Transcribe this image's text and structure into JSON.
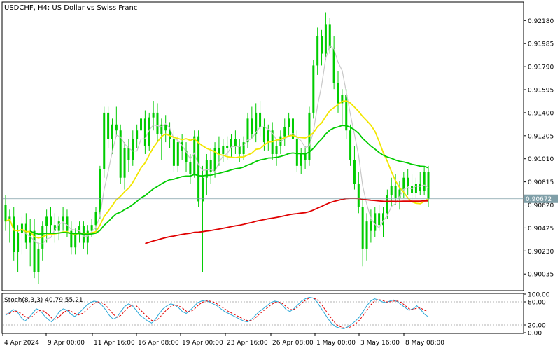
{
  "header": {
    "title": "USDCHF, H4:  US Dollar vs Swiss Franc"
  },
  "colors": {
    "background": "#ffffff",
    "candle": "#00cc00",
    "ma_yellow": "#f2e600",
    "ma_green": "#00cc00",
    "ma_red": "#e00000",
    "ma_gray": "#c8c8c8",
    "price_line": "#7f9fa8",
    "stoch_main": "#2aa8d8",
    "stoch_signal": "#e00000",
    "axis": "#000000"
  },
  "price_axis": {
    "ticks": [
      "0.92180",
      "0.91985",
      "0.91790",
      "0.91595",
      "0.91400",
      "0.91205",
      "0.91010",
      "0.90815",
      "0.90620",
      "0.90425",
      "0.90230",
      "0.90035"
    ],
    "current_price_label": "0.90672"
  },
  "stoch_panel": {
    "label": "Stoch(8,3,3) 40.79 55.21",
    "ticks": [
      "100.00",
      "80.00",
      "20.00",
      "0.00"
    ]
  },
  "time_axis": {
    "ticks": [
      "4 Apr 2024",
      "9 Apr 00:00",
      "11 Apr 16:00",
      "16 Apr 08:00",
      "19 Apr 00:00",
      "23 Apr 16:00",
      "26 Apr 08:00",
      "1 May 00:00",
      "3 May 16:00",
      "8 May 08:00"
    ]
  },
  "chart_data": [
    {
      "type": "candlestick",
      "title": "USDCHF, H4:  US Dollar vs Swiss Franc",
      "ylim": [
        0.899,
        0.9233
      ],
      "x_ticks": [
        "4 Apr 2024",
        "9 Apr 00:00",
        "11 Apr 16:00",
        "16 Apr 08:00",
        "19 Apr 00:00",
        "23 Apr 16:00",
        "26 Apr 08:00",
        "1 May 00:00",
        "3 May 16:00",
        "8 May 08:00"
      ],
      "current_price": 0.90672,
      "ohlc": [
        [
          0.9062,
          0.907,
          0.904,
          0.9048
        ],
        [
          0.9048,
          0.9058,
          0.903,
          0.9052
        ],
        [
          0.9052,
          0.906,
          0.9015,
          0.9022
        ],
        [
          0.9022,
          0.9045,
          0.9005,
          0.9038
        ],
        [
          0.9038,
          0.9052,
          0.902,
          0.9046
        ],
        [
          0.9046,
          0.9055,
          0.9025,
          0.903
        ],
        [
          0.903,
          0.905,
          0.901,
          0.904
        ],
        [
          0.904,
          0.905,
          0.9,
          0.9005
        ],
        [
          0.9005,
          0.903,
          0.8995,
          0.9025
        ],
        [
          0.9025,
          0.9048,
          0.9015,
          0.9044
        ],
        [
          0.9044,
          0.9058,
          0.903,
          0.9052
        ],
        [
          0.9052,
          0.906,
          0.9038,
          0.9045
        ],
        [
          0.9045,
          0.9055,
          0.903,
          0.904
        ],
        [
          0.904,
          0.9052,
          0.9032,
          0.9048
        ],
        [
          0.9048,
          0.906,
          0.904,
          0.9052
        ],
        [
          0.9052,
          0.9058,
          0.9035,
          0.904
        ],
        [
          0.904,
          0.9048,
          0.902,
          0.9026
        ],
        [
          0.9026,
          0.9042,
          0.902,
          0.9038
        ],
        [
          0.9038,
          0.9048,
          0.903,
          0.9044
        ],
        [
          0.9044,
          0.9048,
          0.9025,
          0.903
        ],
        [
          0.903,
          0.9045,
          0.902,
          0.904
        ],
        [
          0.904,
          0.905,
          0.9035,
          0.9045
        ],
        [
          0.9045,
          0.906,
          0.904,
          0.9056
        ],
        [
          0.9056,
          0.9095,
          0.905,
          0.9092
        ],
        [
          0.9092,
          0.9145,
          0.9085,
          0.914
        ],
        [
          0.914,
          0.9145,
          0.911,
          0.9118
        ],
        [
          0.9118,
          0.9135,
          0.9105,
          0.913
        ],
        [
          0.913,
          0.9145,
          0.912,
          0.9125
        ],
        [
          0.9125,
          0.913,
          0.908,
          0.9085
        ],
        [
          0.9085,
          0.9115,
          0.9075,
          0.911
        ],
        [
          0.911,
          0.9118,
          0.909,
          0.91
        ],
        [
          0.91,
          0.9125,
          0.9095,
          0.9118
        ],
        [
          0.9118,
          0.913,
          0.911,
          0.9125
        ],
        [
          0.9125,
          0.914,
          0.9118,
          0.9135
        ],
        [
          0.9135,
          0.9142,
          0.9105,
          0.9112
        ],
        [
          0.9112,
          0.914,
          0.9108,
          0.9136
        ],
        [
          0.9136,
          0.915,
          0.9125,
          0.914
        ],
        [
          0.914,
          0.9148,
          0.9115,
          0.9122
        ],
        [
          0.9122,
          0.9135,
          0.91,
          0.913
        ],
        [
          0.913,
          0.9138,
          0.9115,
          0.9125
        ],
        [
          0.9125,
          0.9132,
          0.911,
          0.9118
        ],
        [
          0.9118,
          0.9125,
          0.909,
          0.9095
        ],
        [
          0.9095,
          0.912,
          0.909,
          0.9115
        ],
        [
          0.9115,
          0.9122,
          0.91,
          0.9108
        ],
        [
          0.9108,
          0.9115,
          0.909,
          0.9098
        ],
        [
          0.9098,
          0.9105,
          0.908,
          0.9088
        ],
        [
          0.9088,
          0.9125,
          0.9085,
          0.912
        ],
        [
          0.912,
          0.9125,
          0.906,
          0.9065
        ],
        [
          0.9065,
          0.9095,
          0.9005,
          0.9085
        ],
        [
          0.9085,
          0.9105,
          0.907,
          0.91
        ],
        [
          0.91,
          0.911,
          0.908,
          0.909
        ],
        [
          0.909,
          0.9115,
          0.9085,
          0.911
        ],
        [
          0.911,
          0.912,
          0.9095,
          0.9105
        ],
        [
          0.9105,
          0.9118,
          0.9098,
          0.9112
        ],
        [
          0.9112,
          0.912,
          0.91,
          0.911
        ],
        [
          0.911,
          0.9122,
          0.9102,
          0.9118
        ],
        [
          0.9118,
          0.9125,
          0.9105,
          0.9112
        ],
        [
          0.9112,
          0.9118,
          0.9098,
          0.9105
        ],
        [
          0.9105,
          0.912,
          0.91,
          0.9115
        ],
        [
          0.9115,
          0.914,
          0.911,
          0.9135
        ],
        [
          0.9135,
          0.9145,
          0.9118,
          0.9122
        ],
        [
          0.9122,
          0.9148,
          0.9115,
          0.914
        ],
        [
          0.914,
          0.915,
          0.912,
          0.9128
        ],
        [
          0.9128,
          0.9135,
          0.9108,
          0.9115
        ],
        [
          0.9115,
          0.913,
          0.9108,
          0.9125
        ],
        [
          0.9125,
          0.9132,
          0.91,
          0.9105
        ],
        [
          0.9105,
          0.9118,
          0.9095,
          0.9112
        ],
        [
          0.9112,
          0.9125,
          0.9105,
          0.912
        ],
        [
          0.912,
          0.9135,
          0.9112,
          0.9128
        ],
        [
          0.9128,
          0.914,
          0.912,
          0.9135
        ],
        [
          0.9135,
          0.9142,
          0.911,
          0.9118
        ],
        [
          0.9118,
          0.9125,
          0.909,
          0.9095
        ],
        [
          0.9095,
          0.911,
          0.9088,
          0.9105
        ],
        [
          0.9105,
          0.9112,
          0.9092,
          0.91
        ],
        [
          0.91,
          0.9145,
          0.9095,
          0.914
        ],
        [
          0.914,
          0.9185,
          0.9135,
          0.918
        ],
        [
          0.918,
          0.9212,
          0.9172,
          0.9205
        ],
        [
          0.9205,
          0.921,
          0.918,
          0.919
        ],
        [
          0.919,
          0.9225,
          0.9185,
          0.9215
        ],
        [
          0.9215,
          0.922,
          0.919,
          0.9195
        ],
        [
          0.9195,
          0.9205,
          0.916,
          0.9165
        ],
        [
          0.9165,
          0.9175,
          0.914,
          0.9148
        ],
        [
          0.9148,
          0.916,
          0.913,
          0.9155
        ],
        [
          0.9155,
          0.916,
          0.9118,
          0.9125
        ],
        [
          0.9125,
          0.913,
          0.9095,
          0.91
        ],
        [
          0.91,
          0.9112,
          0.9075,
          0.908
        ],
        [
          0.908,
          0.909,
          0.9055,
          0.906
        ],
        [
          0.906,
          0.9068,
          0.901,
          0.9025
        ],
        [
          0.9025,
          0.9055,
          0.9015,
          0.9048
        ],
        [
          0.9048,
          0.9058,
          0.903,
          0.904
        ],
        [
          0.904,
          0.906,
          0.9035,
          0.9055
        ],
        [
          0.9055,
          0.9062,
          0.904,
          0.9045
        ],
        [
          0.9045,
          0.906,
          0.9035,
          0.9055
        ],
        [
          0.9055,
          0.9075,
          0.905,
          0.907
        ],
        [
          0.907,
          0.9085,
          0.906,
          0.9078
        ],
        [
          0.9078,
          0.9088,
          0.9062,
          0.9068
        ],
        [
          0.9068,
          0.9082,
          0.9058,
          0.9075
        ],
        [
          0.9075,
          0.909,
          0.9068,
          0.9085
        ],
        [
          0.9085,
          0.9092,
          0.907,
          0.9078
        ],
        [
          0.9078,
          0.9088,
          0.9065,
          0.9072
        ],
        [
          0.9072,
          0.9085,
          0.9068,
          0.908
        ],
        [
          0.908,
          0.909,
          0.907,
          0.9074
        ],
        [
          0.9074,
          0.9095,
          0.907,
          0.909
        ],
        [
          0.909,
          0.9095,
          0.906,
          0.9067
        ]
      ]
    },
    {
      "type": "line",
      "title": "Stoch(8,3,3) 40.79 55.21",
      "ylim": [
        0,
        100
      ],
      "series": [
        {
          "name": "",
          "values": [
            45,
            52,
            60,
            55,
            40,
            30,
            38,
            50,
            62,
            58,
            45,
            35,
            28,
            40,
            55,
            62,
            58,
            48,
            42,
            50,
            60,
            70,
            78,
            82,
            80,
            72,
            60,
            45,
            35,
            40,
            55,
            68,
            75,
            70,
            58,
            45,
            38,
            30,
            25,
            35,
            50,
            62,
            70,
            75,
            72,
            65,
            55,
            50,
            58,
            68,
            78,
            82,
            84,
            80,
            75,
            70,
            62,
            55,
            50,
            45,
            40,
            35,
            30,
            28,
            35,
            45,
            55,
            62,
            70,
            78,
            82,
            80,
            72,
            60,
            55,
            62,
            72,
            82,
            88,
            92,
            90,
            80,
            65,
            50,
            35,
            22,
            15,
            12,
            10,
            15,
            22,
            30,
            40,
            55,
            70,
            82,
            88,
            85,
            80,
            78,
            82,
            85,
            80,
            72,
            65,
            58,
            62,
            70,
            60,
            48,
            41
          ]
        },
        {
          "name": "",
          "values": [
            48,
            50,
            55,
            56,
            50,
            42,
            38,
            42,
            52,
            58,
            56,
            48,
            38,
            35,
            42,
            52,
            58,
            56,
            50,
            46,
            50,
            58,
            68,
            76,
            80,
            78,
            72,
            60,
            48,
            40,
            45,
            56,
            66,
            72,
            70,
            60,
            50,
            40,
            32,
            30,
            38,
            50,
            60,
            68,
            72,
            70,
            64,
            56,
            54,
            60,
            70,
            78,
            82,
            82,
            80,
            75,
            68,
            62,
            55,
            50,
            45,
            40,
            35,
            31,
            31,
            38,
            48,
            56,
            64,
            72,
            78,
            80,
            76,
            68,
            60,
            60,
            66,
            76,
            84,
            90,
            90,
            86,
            76,
            62,
            48,
            34,
            22,
            16,
            12,
            12,
            16,
            22,
            32,
            44,
            58,
            72,
            82,
            86,
            84,
            80,
            80,
            82,
            82,
            78,
            70,
            62,
            60,
            64,
            64,
            58,
            55
          ]
        }
      ],
      "levels": [
        80,
        20
      ]
    }
  ]
}
